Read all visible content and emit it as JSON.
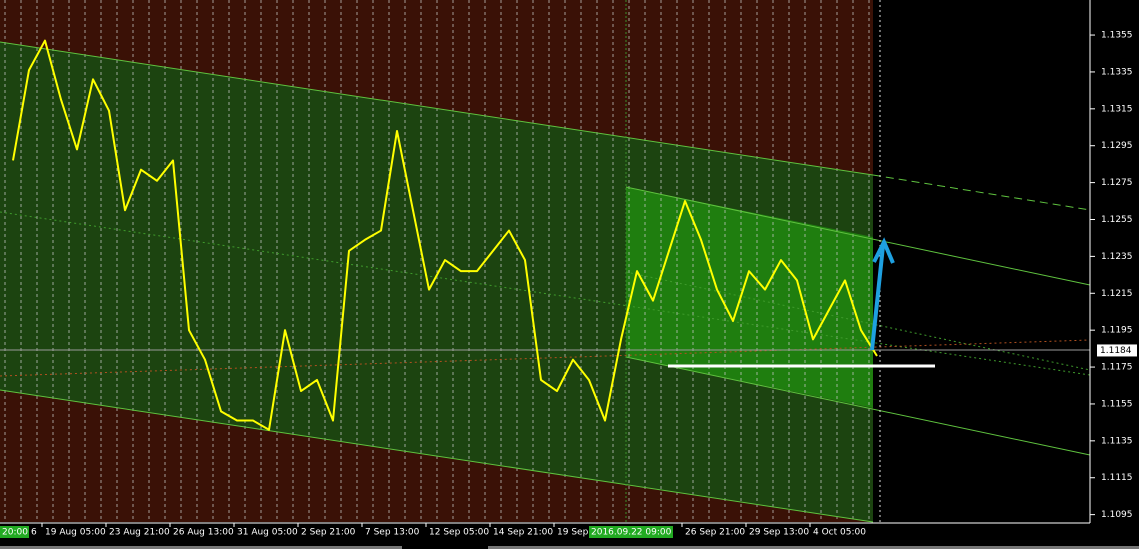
{
  "chart_data": {
    "type": "line",
    "categories": [
      null,
      null,
      "19 Aug 05:00",
      null,
      null,
      null,
      "23 Aug 21:00",
      null,
      null,
      null,
      "26 Aug 13:00",
      null,
      null,
      null,
      "31 Aug 05:00",
      null,
      null,
      null,
      "2 Sep 21:00",
      null,
      null,
      null,
      "7 Sep 13:00",
      null,
      null,
      null,
      "12 Sep 05:00",
      null,
      null,
      null,
      "14 Sep 21:00",
      null,
      null,
      null,
      "19 Sep",
      null,
      null,
      null,
      null,
      null,
      null,
      null,
      "26 Sep 21:00",
      null,
      null,
      null,
      "29 Sep 13:00",
      null,
      null,
      null,
      "4 Oct 05:00",
      null,
      null,
      null,
      null
    ],
    "values": [
      1.1287,
      1.1336,
      1.1352,
      1.132,
      1.1293,
      1.1331,
      1.1314,
      1.126,
      1.1282,
      1.1276,
      1.1287,
      1.1195,
      1.1179,
      1.1151,
      1.1146,
      1.1146,
      1.1141,
      1.1195,
      1.1162,
      1.1168,
      1.1146,
      1.1238,
      1.1244,
      1.1249,
      1.1303,
      1.126,
      1.1217,
      1.1233,
      1.1227,
      1.1227,
      1.1238,
      1.1249,
      1.1233,
      1.1168,
      1.1162,
      1.1179,
      1.1168,
      1.1146,
      1.119,
      1.1227,
      1.1211,
      1.1238,
      1.1265,
      1.1244,
      1.1217,
      1.12,
      1.1227,
      1.1217,
      1.1233,
      1.1222,
      1.119,
      1.1206,
      1.1222,
      1.1195,
      1.1181
    ],
    "color": "#ffff00",
    "ylim": [
      1.1091,
      1.1374
    ],
    "yticks": [
      1.1095,
      1.1115,
      1.1135,
      1.1155,
      1.1175,
      1.1195,
      1.1215,
      1.1235,
      1.1255,
      1.1275,
      1.1295,
      1.1315,
      1.1335,
      1.1355
    ],
    "current_price": 1.1184,
    "left_time_label": "20:00",
    "left_partial_label": "6",
    "crosshair_time_label": "2016.09.22 09:00"
  }
}
